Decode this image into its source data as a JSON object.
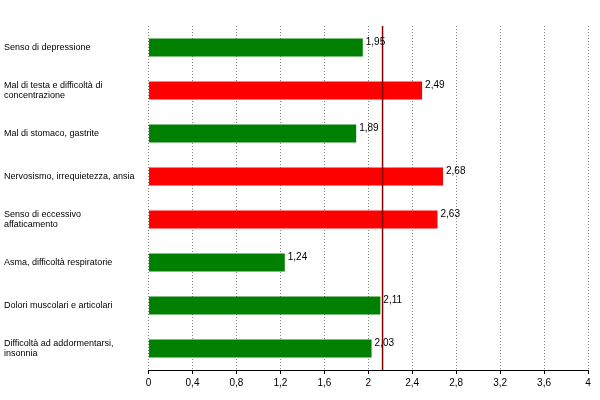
{
  "chart_data": {
    "type": "bar",
    "orientation": "horizontal",
    "categories": [
      "Senso di depressione",
      "Mal di testa e difficoltà di\nconcentrazione",
      "Mal di stomaco, gastrite",
      "Nervosismo, irrequietezza, ansia",
      "Senso di eccessivo\naffaticamento",
      "Asma, difficoltà respiratorie",
      "Dolori muscolari e articolari",
      "Difficoltà ad addormentarsi,\ninsonnia"
    ],
    "values": [
      1.95,
      2.49,
      1.89,
      2.68,
      2.63,
      1.24,
      2.11,
      2.03
    ],
    "value_labels": [
      "1,95",
      "2,49",
      "1,89",
      "2,68",
      "2,63",
      "1,24",
      "2,11",
      "2,03"
    ],
    "colors": [
      "#008000",
      "#ff0000",
      "#008000",
      "#ff0000",
      "#ff0000",
      "#008000",
      "#008000",
      "#008000"
    ],
    "data_labels": true,
    "reference_line": 2.13,
    "xlim": [
      0,
      4
    ],
    "xticks": [
      0,
      {
        "value": 0.4,
        "label": "0,4"
      },
      {
        "value": 0.8,
        "label": "0,8"
      },
      {
        "value": 1.2,
        "label": "1,2"
      },
      {
        "value": 1.6,
        "label": "1,6"
      },
      2,
      {
        "value": 2.4,
        "label": "2,4"
      },
      {
        "value": 2.8,
        "label": "2,8"
      },
      {
        "value": 3.2,
        "label": "3,2"
      },
      {
        "value": 3.6,
        "label": "3,6"
      },
      4
    ],
    "grid": true
  }
}
